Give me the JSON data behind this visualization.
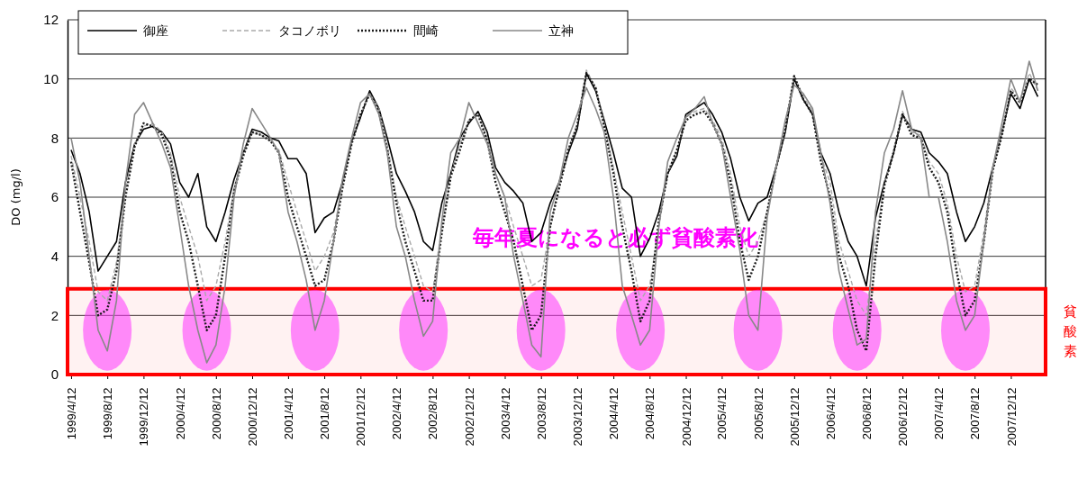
{
  "chart_data": {
    "type": "line",
    "ylabel": "DO (mg/l)",
    "ylim": [
      0,
      12
    ],
    "yticks": [
      0,
      2,
      4,
      6,
      8,
      10,
      12
    ],
    "grid": "y",
    "legend": "top left",
    "marker": "none",
    "xlim": [
      "1999-03-31",
      "2008-04-07"
    ],
    "xticks": [
      {
        "value": "1999-04-12",
        "label": "1999/4/12"
      },
      {
        "value": "1999-08-12",
        "label": "1999/8/12"
      },
      {
        "value": "1999-12-12",
        "label": "1999/12/12"
      },
      {
        "value": "2000-04-12",
        "label": "2000/4/12"
      },
      {
        "value": "2000-08-12",
        "label": "2000/8/12"
      },
      {
        "value": "2000-12-12",
        "label": "2000/12/12"
      },
      {
        "value": "2001-04-12",
        "label": "2001/4/12"
      },
      {
        "value": "2001-08-12",
        "label": "2001/8/12"
      },
      {
        "value": "2001-12-12",
        "label": "2001/12/12"
      },
      {
        "value": "2002-04-12",
        "label": "2002/4/12"
      },
      {
        "value": "2002-08-12",
        "label": "2002/8/12"
      },
      {
        "value": "2002-12-12",
        "label": "2002/12/12"
      },
      {
        "value": "2003-04-12",
        "label": "2003/4/12"
      },
      {
        "value": "2003-08-12",
        "label": "2003/8/12"
      },
      {
        "value": "2003-12-12",
        "label": "2003/12/12"
      },
      {
        "value": "2004-04-12",
        "label": "2004/4/12"
      },
      {
        "value": "2004-08-12",
        "label": "2004/8/12"
      },
      {
        "value": "2004-12-12",
        "label": "2004/12/12"
      },
      {
        "value": "2005-04-12",
        "label": "2005/4/12"
      },
      {
        "value": "2005-08-12",
        "label": "2005/8/12"
      },
      {
        "value": "2005-12-12",
        "label": "2005/12/12"
      },
      {
        "value": "2006-04-12",
        "label": "2006/4/12"
      },
      {
        "value": "2006-08-12",
        "label": "2006/8/12"
      },
      {
        "value": "2006-12-12",
        "label": "2006/12/12"
      },
      {
        "value": "2007-04-12",
        "label": "2007/4/12"
      },
      {
        "value": "2007-08-12",
        "label": "2007/8/12"
      },
      {
        "value": "2007-12-12",
        "label": "2007/12/12"
      }
    ],
    "x": [
      "1999-04-12",
      "1999-05-12",
      "1999-06-12",
      "1999-07-12",
      "1999-08-12",
      "1999-09-12",
      "1999-10-12",
      "1999-11-12",
      "1999-12-12",
      "2000-01-12",
      "2000-02-12",
      "2000-03-12",
      "2000-04-12",
      "2000-05-12",
      "2000-06-12",
      "2000-07-12",
      "2000-08-12",
      "2000-09-12",
      "2000-10-12",
      "2000-11-12",
      "2000-12-12",
      "2001-01-12",
      "2001-02-12",
      "2001-03-12",
      "2001-04-12",
      "2001-05-12",
      "2001-06-12",
      "2001-07-12",
      "2001-08-12",
      "2001-09-12",
      "2001-10-12",
      "2001-11-12",
      "2001-12-12",
      "2002-01-12",
      "2002-02-12",
      "2002-03-12",
      "2002-04-12",
      "2002-05-12",
      "2002-06-12",
      "2002-07-12",
      "2002-08-12",
      "2002-09-12",
      "2002-10-12",
      "2002-11-12",
      "2002-12-12",
      "2003-01-12",
      "2003-02-12",
      "2003-03-12",
      "2003-04-12",
      "2003-05-12",
      "2003-06-12",
      "2003-07-12",
      "2003-08-12",
      "2003-09-12",
      "2003-10-12",
      "2003-11-12",
      "2003-12-12",
      "2004-01-12",
      "2004-02-12",
      "2004-03-12",
      "2004-04-12",
      "2004-05-12",
      "2004-06-12",
      "2004-07-12",
      "2004-08-12",
      "2004-09-12",
      "2004-10-12",
      "2004-11-12",
      "2004-12-12",
      "2005-01-12",
      "2005-02-12",
      "2005-03-12",
      "2005-04-12",
      "2005-05-12",
      "2005-06-12",
      "2005-07-12",
      "2005-08-12",
      "2005-09-12",
      "2005-10-12",
      "2005-11-12",
      "2005-12-12",
      "2006-01-12",
      "2006-02-12",
      "2006-03-12",
      "2006-04-12",
      "2006-05-12",
      "2006-06-12",
      "2006-07-12",
      "2006-08-12",
      "2006-09-12",
      "2006-10-12",
      "2006-11-12",
      "2006-12-12",
      "2007-01-12",
      "2007-02-12",
      "2007-03-12",
      "2007-04-12",
      "2007-05-12",
      "2007-06-12",
      "2007-07-12",
      "2007-08-12",
      "2007-09-12",
      "2007-10-12",
      "2007-11-12",
      "2007-12-12",
      "2008-01-12",
      "2008-02-12",
      "2008-03-12"
    ],
    "series": [
      {
        "name": "御座",
        "color": "#000000",
        "line_style": "solid",
        "values": [
          7.6,
          6.8,
          5.5,
          3.5,
          4.0,
          4.5,
          6.5,
          7.8,
          8.3,
          8.4,
          8.2,
          7.8,
          6.5,
          6.0,
          6.8,
          5.0,
          4.5,
          5.5,
          6.6,
          7.5,
          8.3,
          8.2,
          8.0,
          7.9,
          7.3,
          7.3,
          6.8,
          4.8,
          5.3,
          5.5,
          6.5,
          7.9,
          8.7,
          9.6,
          9.0,
          8.0,
          6.8,
          6.2,
          5.5,
          4.5,
          4.2,
          5.8,
          6.8,
          8.0,
          8.5,
          8.9,
          8.2,
          7.0,
          6.5,
          6.2,
          5.8,
          4.5,
          4.8,
          5.8,
          6.5,
          7.5,
          8.3,
          10.2,
          9.6,
          8.6,
          7.5,
          6.3,
          6.0,
          4.0,
          4.6,
          5.5,
          6.8,
          7.4,
          8.8,
          9.0,
          9.2,
          8.8,
          8.2,
          7.3,
          6.0,
          5.2,
          5.8,
          6.0,
          7.0,
          8.2,
          10.0,
          9.3,
          8.8,
          7.5,
          6.8,
          5.5,
          4.5,
          4.0,
          3.0,
          5.3,
          6.5,
          7.5,
          8.8,
          8.3,
          8.2,
          7.5,
          7.2,
          6.8,
          5.5,
          4.5,
          5.0,
          5.8,
          7.0,
          8.2,
          9.5,
          9.0,
          10.0,
          9.4
        ]
      },
      {
        "name": "タコノボリ",
        "color": "#aaaaaa",
        "line_style": "dashed",
        "values": [
          7.4,
          6.0,
          4.5,
          2.8,
          2.5,
          3.8,
          6.2,
          7.8,
          8.4,
          8.5,
          8.2,
          7.5,
          6.0,
          5.0,
          4.0,
          2.5,
          3.0,
          4.5,
          6.3,
          7.5,
          8.2,
          8.1,
          7.9,
          7.6,
          6.5,
          5.5,
          4.5,
          3.5,
          4.0,
          4.8,
          6.4,
          7.9,
          8.8,
          9.5,
          9.0,
          7.8,
          6.0,
          5.0,
          4.0,
          3.0,
          2.8,
          5.0,
          6.8,
          7.8,
          8.6,
          8.8,
          8.0,
          6.8,
          6.0,
          5.0,
          4.0,
          3.0,
          3.2,
          5.0,
          6.4,
          7.6,
          8.5,
          10.3,
          9.7,
          8.5,
          7.0,
          5.5,
          4.0,
          2.5,
          3.0,
          5.0,
          6.8,
          7.6,
          8.7,
          8.9,
          9.0,
          8.6,
          8.0,
          6.8,
          5.0,
          4.0,
          4.5,
          5.5,
          7.0,
          8.3,
          10.1,
          9.4,
          8.9,
          7.4,
          6.5,
          4.5,
          3.5,
          2.5,
          2.0,
          4.5,
          6.5,
          7.6,
          8.9,
          8.2,
          8.1,
          7.2,
          6.8,
          5.8,
          4.0,
          2.8,
          3.0,
          4.8,
          7.0,
          8.2,
          9.7,
          9.3,
          10.2,
          9.6
        ]
      },
      {
        "name": "間崎",
        "color": "#1a1a1a",
        "line_style": "dotted",
        "values": [
          7.2,
          5.5,
          3.8,
          2.0,
          2.2,
          3.5,
          6.0,
          7.7,
          8.5,
          8.4,
          8.1,
          7.3,
          5.5,
          4.5,
          3.0,
          1.5,
          2.0,
          4.0,
          6.2,
          7.4,
          8.2,
          8.1,
          7.9,
          7.5,
          6.0,
          5.0,
          4.0,
          3.0,
          3.2,
          4.5,
          6.3,
          7.8,
          8.8,
          9.5,
          8.9,
          7.6,
          5.8,
          4.5,
          3.5,
          2.5,
          2.5,
          4.8,
          6.7,
          7.6,
          8.6,
          8.8,
          7.9,
          6.5,
          5.5,
          4.5,
          3.0,
          1.5,
          2.0,
          5.0,
          6.3,
          7.6,
          8.4,
          10.2,
          9.7,
          8.4,
          6.8,
          5.0,
          3.5,
          1.8,
          2.5,
          5.2,
          6.8,
          7.6,
          8.6,
          8.8,
          8.9,
          8.5,
          7.8,
          6.5,
          4.5,
          3.2,
          4.0,
          5.5,
          7.0,
          8.3,
          10.1,
          9.3,
          8.8,
          7.2,
          6.0,
          4.0,
          3.0,
          1.5,
          0.8,
          4.0,
          6.4,
          7.5,
          8.8,
          8.1,
          8.0,
          7.0,
          6.5,
          5.5,
          3.5,
          2.0,
          2.5,
          4.5,
          6.9,
          8.1,
          9.6,
          9.2,
          10.0,
          9.8
        ]
      },
      {
        "name": "立神",
        "color": "#888888",
        "line_style": "solid",
        "values": [
          8.0,
          6.5,
          4.0,
          1.5,
          0.8,
          2.5,
          6.5,
          8.8,
          9.2,
          8.5,
          7.8,
          7.0,
          5.0,
          3.0,
          1.5,
          0.4,
          1.0,
          3.0,
          6.0,
          7.8,
          9.0,
          8.5,
          8.0,
          7.5,
          5.5,
          4.5,
          3.2,
          1.5,
          2.5,
          4.5,
          6.6,
          8.0,
          9.2,
          9.5,
          8.8,
          7.5,
          5.0,
          4.0,
          2.5,
          1.3,
          1.8,
          5.2,
          7.5,
          8.0,
          9.2,
          8.5,
          7.8,
          6.8,
          6.0,
          4.0,
          2.5,
          1.0,
          0.6,
          5.5,
          6.5,
          8.0,
          8.8,
          9.7,
          9.0,
          8.2,
          6.0,
          3.0,
          2.0,
          1.0,
          1.5,
          5.0,
          7.2,
          8.0,
          8.7,
          9.0,
          9.4,
          8.5,
          7.8,
          6.0,
          4.2,
          2.0,
          1.5,
          5.3,
          7.0,
          8.6,
          9.8,
          9.5,
          9.0,
          7.5,
          5.8,
          3.5,
          2.2,
          1.0,
          1.2,
          5.5,
          7.5,
          8.3,
          9.6,
          8.3,
          8.0,
          6.0,
          6.0,
          4.5,
          2.5,
          1.5,
          2.0,
          4.5,
          7.0,
          8.5,
          10.0,
          9.2,
          10.6,
          9.6
        ]
      }
    ],
    "bands": [
      {
        "axis": "y",
        "from": 0,
        "to": 2.9,
        "label": "貧酸素",
        "color": "#ff0000"
      }
    ],
    "annotations": [
      "毎年夏になると必ず貧酸素化"
    ]
  }
}
